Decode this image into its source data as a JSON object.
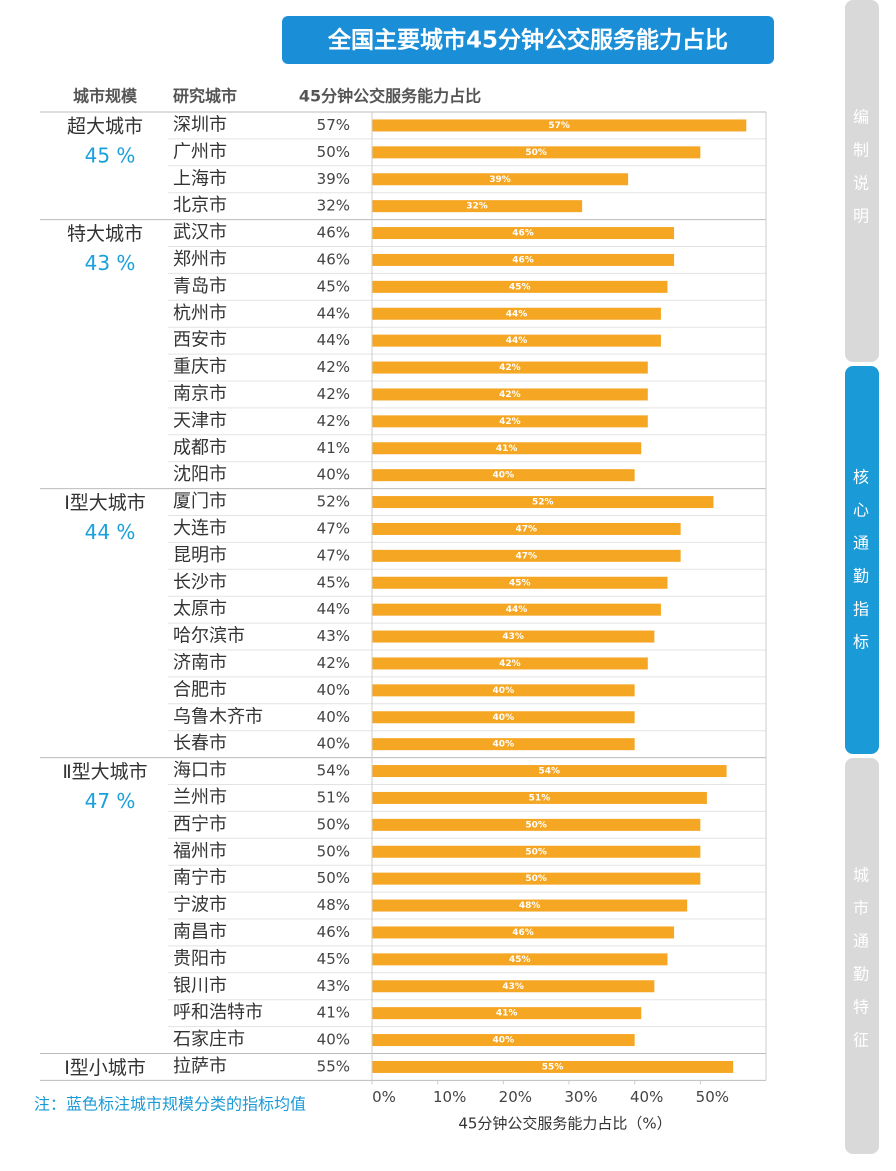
{
  "chart_data": {
    "type": "bar",
    "title": "全国主要城市45分钟公交服务能力占比",
    "headers": [
      "城市规模",
      "研究城市",
      "45分钟公交服务能力占比"
    ],
    "groups": [
      {
        "name": "超大城市",
        "mean": {
          "value": 45,
          "label": "45 %"
        },
        "categories": [
          "深圳市",
          "广州市",
          "上海市",
          "北京市"
        ],
        "values": [
          57,
          50,
          39,
          32
        ],
        "value_labels": [
          "57%",
          "50%",
          "39%",
          "32%"
        ]
      },
      {
        "name": "特大城市",
        "mean": {
          "value": 43,
          "label": "43 %"
        },
        "categories": [
          "武汉市",
          "郑州市",
          "青岛市",
          "杭州市",
          "西安市",
          "重庆市",
          "南京市",
          "天津市",
          "成都市",
          "沈阳市"
        ],
        "values": [
          46,
          46,
          45,
          44,
          44,
          42,
          42,
          42,
          41,
          40
        ],
        "value_labels": [
          "46%",
          "46%",
          "45%",
          "44%",
          "44%",
          "42%",
          "42%",
          "42%",
          "41%",
          "40%"
        ]
      },
      {
        "name": "Ⅰ型大城市",
        "mean": {
          "value": 44,
          "label": "44 %"
        },
        "categories": [
          "厦门市",
          "大连市",
          "昆明市",
          "长沙市",
          "太原市",
          "哈尔滨市",
          "济南市",
          "合肥市",
          "乌鲁木齐市",
          "长春市"
        ],
        "values": [
          52,
          47,
          47,
          45,
          44,
          43,
          42,
          40,
          40,
          40
        ],
        "value_labels": [
          "52%",
          "47%",
          "47%",
          "45%",
          "44%",
          "43%",
          "42%",
          "40%",
          "40%",
          "40%"
        ]
      },
      {
        "name": "Ⅱ型大城市",
        "mean": {
          "value": 47,
          "label": "47 %"
        },
        "categories": [
          "海口市",
          "兰州市",
          "西宁市",
          "福州市",
          "南宁市",
          "宁波市",
          "南昌市",
          "贵阳市",
          "银川市",
          "呼和浩特市",
          "石家庄市"
        ],
        "values": [
          54,
          51,
          50,
          50,
          50,
          48,
          46,
          45,
          43,
          41,
          40
        ],
        "value_labels": [
          "54%",
          "51%",
          "50%",
          "50%",
          "50%",
          "48%",
          "46%",
          "45%",
          "43%",
          "41%",
          "40%"
        ]
      },
      {
        "name": "Ⅰ型小城市",
        "categories": [
          "拉萨市"
        ],
        "values": [
          55
        ],
        "value_labels": [
          "55%"
        ]
      }
    ],
    "color": "#f5a623",
    "xlim": [
      0,
      60
    ],
    "xticks": [
      {
        "value": 0,
        "label": "0%"
      },
      {
        "value": 10,
        "label": "10%"
      },
      {
        "value": 20,
        "label": "20%"
      },
      {
        "value": 30,
        "label": "30%"
      },
      {
        "value": 40,
        "label": "40%"
      },
      {
        "value": 50,
        "label": "50%"
      }
    ],
    "x_label": "45分钟公交服务能力占比（%）",
    "note": "注：蓝色标注城市规模分类的指标均值"
  },
  "sidebar": {
    "tabs": [
      "编制说明",
      "核心通勤指标",
      "城市通勤特征"
    ]
  }
}
